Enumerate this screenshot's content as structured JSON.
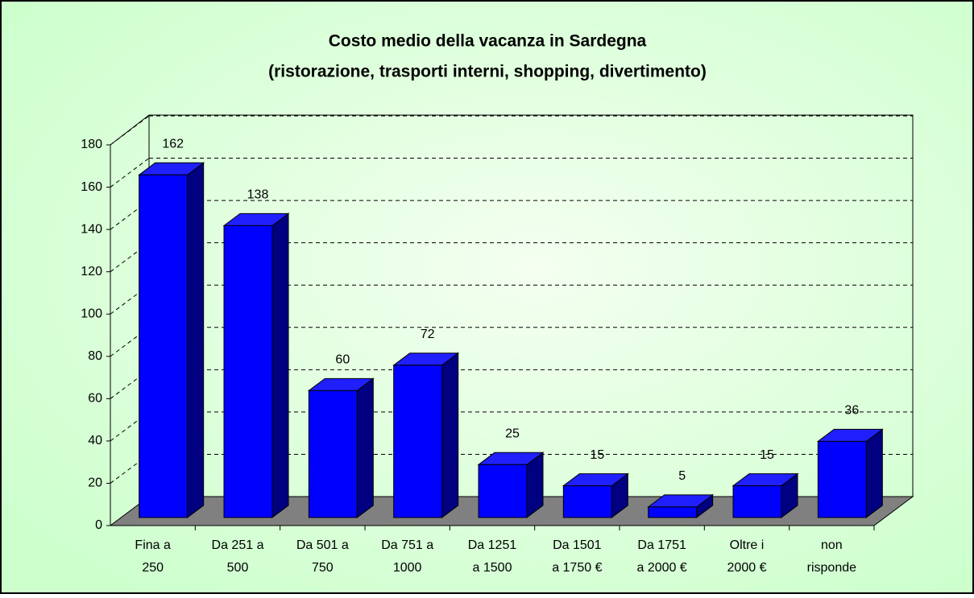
{
  "chart_data": {
    "type": "bar3d",
    "title": "Costo medio della vacanza in Sardegna",
    "subtitle": "(ristorazione, trasporti interni, shopping, divertimento)",
    "categories": [
      "Fina a\n250",
      "Da 251 a\n500",
      "Da 501 a\n750",
      "Da 751 a\n1000",
      "Da 1251\na 1500",
      "Da 1501\na 1750 €",
      "Da 1751\na 2000 €",
      "Oltre i\n2000 €",
      "non\nrisponde"
    ],
    "values": [
      162,
      138,
      60,
      72,
      25,
      15,
      5,
      15,
      36
    ],
    "color": "#0000ff",
    "ylim": [
      0,
      180
    ],
    "yticks": [
      0,
      20,
      40,
      60,
      80,
      100,
      120,
      140,
      160,
      180
    ],
    "grid": true
  }
}
